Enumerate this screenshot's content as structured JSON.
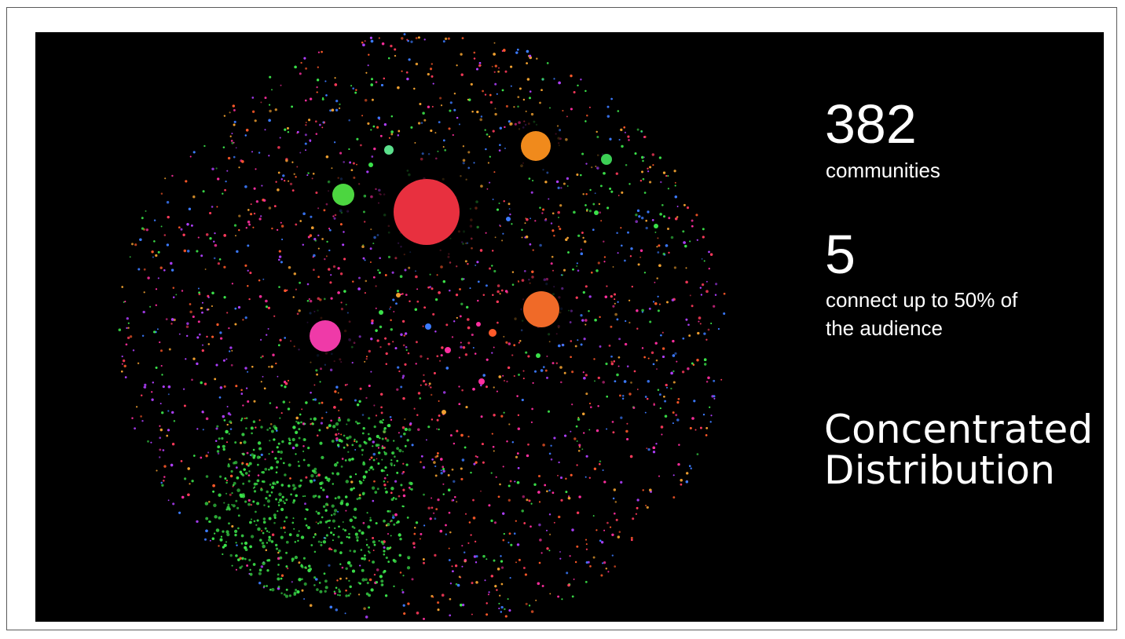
{
  "stats": [
    {
      "number": "382",
      "label_lines": [
        "communities"
      ]
    },
    {
      "number": "5",
      "label_lines": [
        "connect up to 50% of",
        "the audience"
      ]
    }
  ],
  "headline_lines": [
    "Concentrated",
    "Distribution"
  ],
  "network": {
    "hubs": [
      {
        "color": "#e8303f"
      },
      {
        "color": "#f08a1c"
      },
      {
        "color": "#f06a28"
      },
      {
        "color": "#ef3aa8"
      },
      {
        "color": "#4cd640"
      },
      {
        "color": "#3ccf55"
      },
      {
        "color": "#5be08c"
      }
    ],
    "community_colors": [
      "#ff3b5c",
      "#3be24a",
      "#f0a030",
      "#b040ff",
      "#3c7bff",
      "#ff2fa0",
      "#ff5a2a"
    ]
  }
}
